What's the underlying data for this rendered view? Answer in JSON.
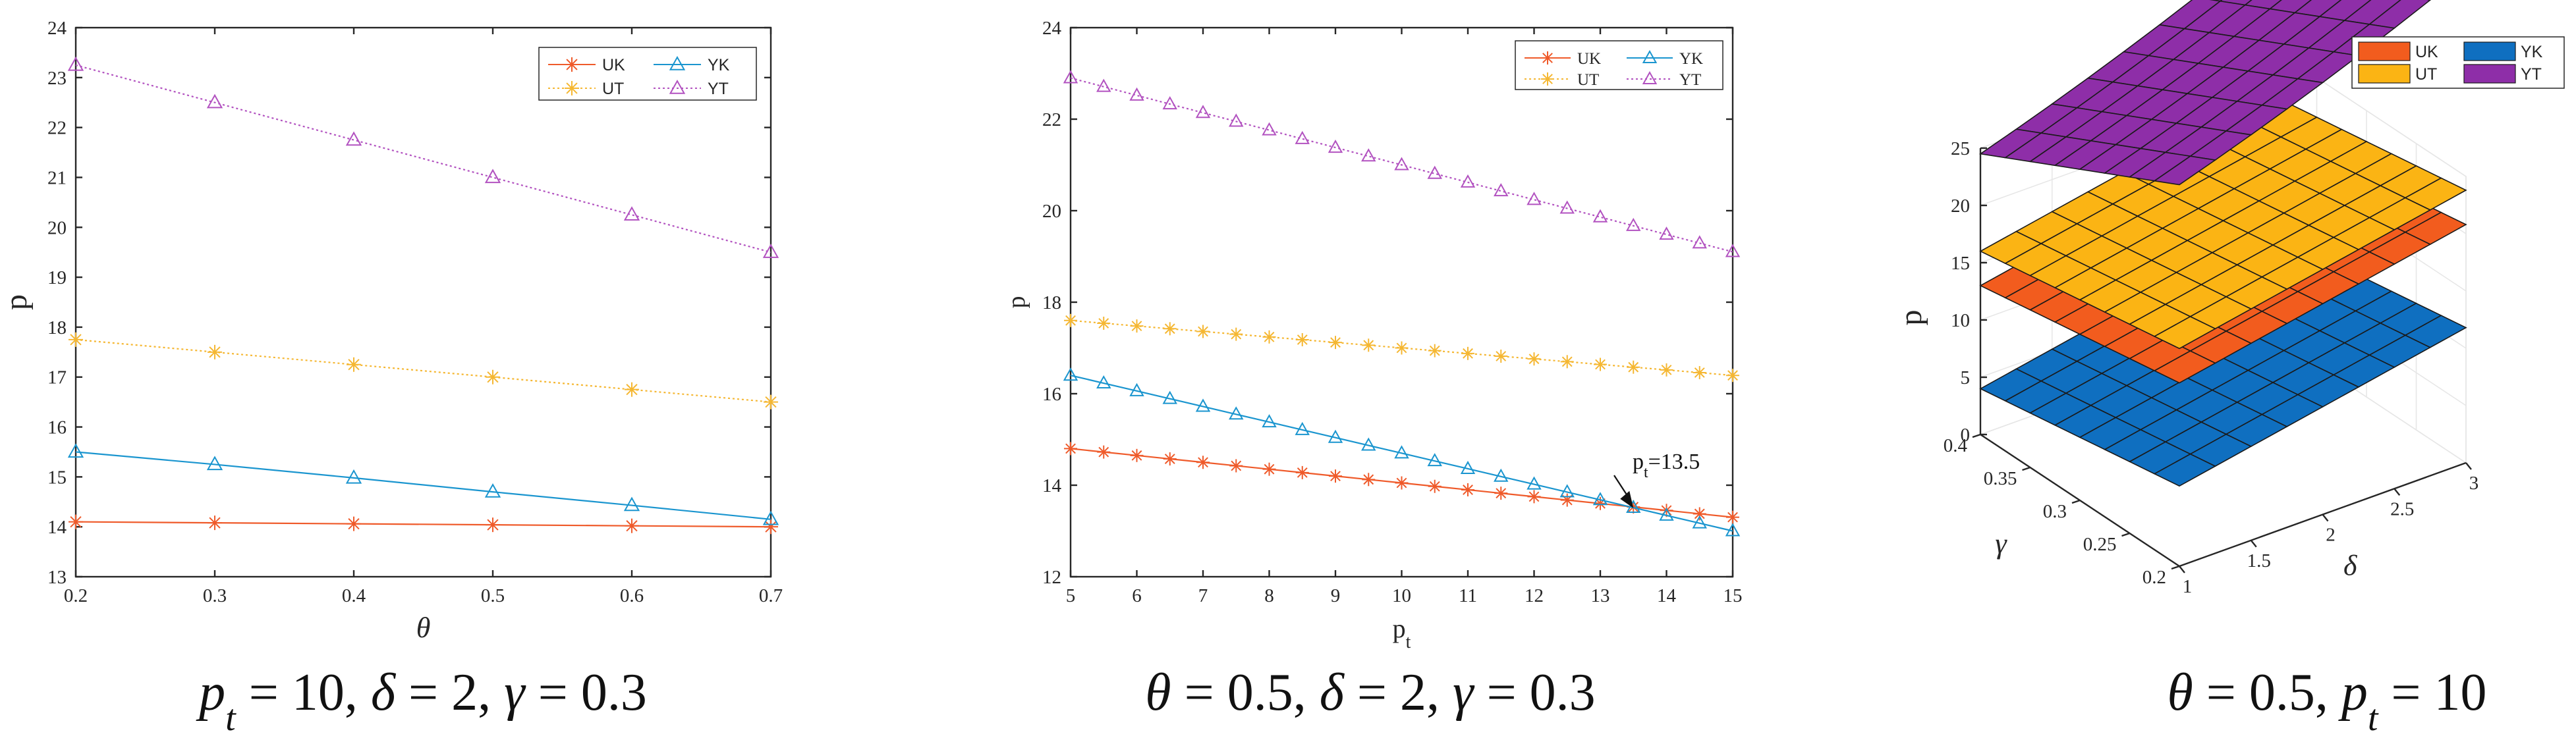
{
  "chart_data": [
    {
      "type": "line",
      "xlabel": "θ",
      "ylabel": "p",
      "xlim": [
        0.2,
        0.7
      ],
      "ylim": [
        13,
        24
      ],
      "x_ticks": [
        "0.2",
        "0.3",
        "0.4",
        "0.5",
        "0.6",
        "0.7"
      ],
      "y_ticks": [
        "13",
        "14",
        "15",
        "16",
        "17",
        "18",
        "19",
        "20",
        "21",
        "22",
        "23",
        "24"
      ],
      "x": [
        0.2,
        0.3,
        0.4,
        0.5,
        0.6,
        0.7
      ],
      "legend": {
        "placement": "top-right",
        "columns": 2
      },
      "series": [
        {
          "name": "UK",
          "color": "#ef5a2a",
          "marker": "asterisk",
          "dash": "solid",
          "values": [
            14.1,
            14.08,
            14.06,
            14.04,
            14.02,
            14.0
          ]
        },
        {
          "name": "YK",
          "color": "#1a95cf",
          "marker": "triangle",
          "dash": "solid",
          "values": [
            15.5,
            15.25,
            14.98,
            14.7,
            14.43,
            14.15
          ]
        },
        {
          "name": "UT",
          "color": "#f5b732",
          "marker": "asterisk",
          "dash": "dotted",
          "values": [
            17.75,
            17.5,
            17.25,
            17.0,
            16.75,
            16.5
          ]
        },
        {
          "name": "YT",
          "color": "#b252c0",
          "marker": "triangle",
          "dash": "dotted",
          "values": [
            23.25,
            22.5,
            21.75,
            21.0,
            20.25,
            19.5
          ]
        }
      ],
      "caption": "p_t = 10, δ = 2, γ = 0.3"
    },
    {
      "type": "line",
      "xlabel": "p_t",
      "ylabel": "p",
      "xlim": [
        5,
        15
      ],
      "ylim": [
        12,
        24
      ],
      "x_ticks": [
        "5",
        "6",
        "7",
        "8",
        "9",
        "10",
        "11",
        "12",
        "13",
        "14",
        "15"
      ],
      "y_ticks": [
        "12",
        "14",
        "16",
        "18",
        "20",
        "22",
        "24"
      ],
      "x": [
        5,
        5.5,
        6,
        6.5,
        7,
        7.5,
        8,
        8.5,
        9,
        9.5,
        10,
        10.5,
        11,
        11.5,
        12,
        12.5,
        13,
        13.5,
        14,
        14.5,
        15
      ],
      "legend": {
        "placement": "top-right",
        "columns": 2
      },
      "series": [
        {
          "name": "UK",
          "color": "#ef5a2a",
          "marker": "asterisk",
          "dash": "solid",
          "values": [
            14.8,
            14.725,
            14.65,
            14.575,
            14.5,
            14.425,
            14.35,
            14.275,
            14.2,
            14.125,
            14.05,
            13.975,
            13.9,
            13.825,
            13.75,
            13.675,
            13.6,
            13.525,
            13.45,
            13.375,
            13.3
          ]
        },
        {
          "name": "YK",
          "color": "#1a95cf",
          "marker": "triangle",
          "dash": "solid",
          "values": [
            16.4,
            16.23,
            16.06,
            15.89,
            15.72,
            15.55,
            15.38,
            15.21,
            15.04,
            14.87,
            14.7,
            14.53,
            14.36,
            14.19,
            14.02,
            13.85,
            13.68,
            13.51,
            13.34,
            13.17,
            13.0
          ]
        },
        {
          "name": "UT",
          "color": "#f5b732",
          "marker": "asterisk",
          "dash": "dotted",
          "values": [
            17.6,
            17.54,
            17.48,
            17.42,
            17.36,
            17.3,
            17.24,
            17.18,
            17.12,
            17.06,
            17.0,
            16.94,
            16.88,
            16.82,
            16.76,
            16.7,
            16.64,
            16.58,
            16.52,
            16.46,
            16.4
          ]
        },
        {
          "name": "YT",
          "color": "#b252c0",
          "marker": "triangle",
          "dash": "dotted",
          "values": [
            22.9,
            22.71,
            22.52,
            22.33,
            22.14,
            21.95,
            21.76,
            21.57,
            21.38,
            21.19,
            21.0,
            20.81,
            20.62,
            20.43,
            20.24,
            20.05,
            19.86,
            19.67,
            19.48,
            19.29,
            19.1
          ]
        }
      ],
      "annotation": {
        "text": "p_t=13.5",
        "x": 13.5,
        "y": 13.5
      },
      "caption": "θ = 0.5, δ = 2, γ = 0.3"
    },
    {
      "type": "surface3d",
      "xlabel": "δ",
      "ylabel": "γ",
      "zlabel": "p",
      "xlim": [
        1,
        3
      ],
      "ylim": [
        0.2,
        0.4
      ],
      "zlim": [
        0,
        25
      ],
      "x_ticks": [
        "1",
        "1.5",
        "2",
        "2.5",
        "3"
      ],
      "y_ticks": [
        "0.2",
        "0.25",
        "0.3",
        "0.35",
        "0.4"
      ],
      "z_ticks": [
        "0",
        "5",
        "10",
        "15",
        "20",
        "25"
      ],
      "grid_delta": [
        1,
        1.25,
        1.5,
        1.75,
        2,
        2.25,
        2.5,
        2.75,
        3
      ],
      "grid_gamma": [
        0.2,
        0.225,
        0.25,
        0.275,
        0.3,
        0.325,
        0.35,
        0.375,
        0.4
      ],
      "legend": {
        "placement": "top-right",
        "columns": 2,
        "order": [
          "UK",
          "YK",
          "UT",
          "YT"
        ]
      },
      "series": [
        {
          "name": "YK",
          "color": "#0f6fc0",
          "z_at_gamma_0.4_delta_1": 4,
          "d_delta": 2.4,
          "d_gamma": -15
        },
        {
          "name": "UK",
          "color": "#f25c1e",
          "z_at_gamma_0.4_delta_1": 13,
          "d_delta": 2.4,
          "d_gamma": -15
        },
        {
          "name": "UT",
          "color": "#fbb414",
          "z_at_gamma_0.4_delta_1": 16,
          "d_delta": 2.4,
          "d_gamma": -15
        },
        {
          "name": "YT",
          "color": "#8e2ea8",
          "z_at_gamma_0.4_delta_1": 24.5,
          "d_delta": 4.0,
          "d_gamma": -44,
          "delta_curve": 0.8
        }
      ],
      "caption": "θ = 0.5, p_t = 10"
    }
  ]
}
